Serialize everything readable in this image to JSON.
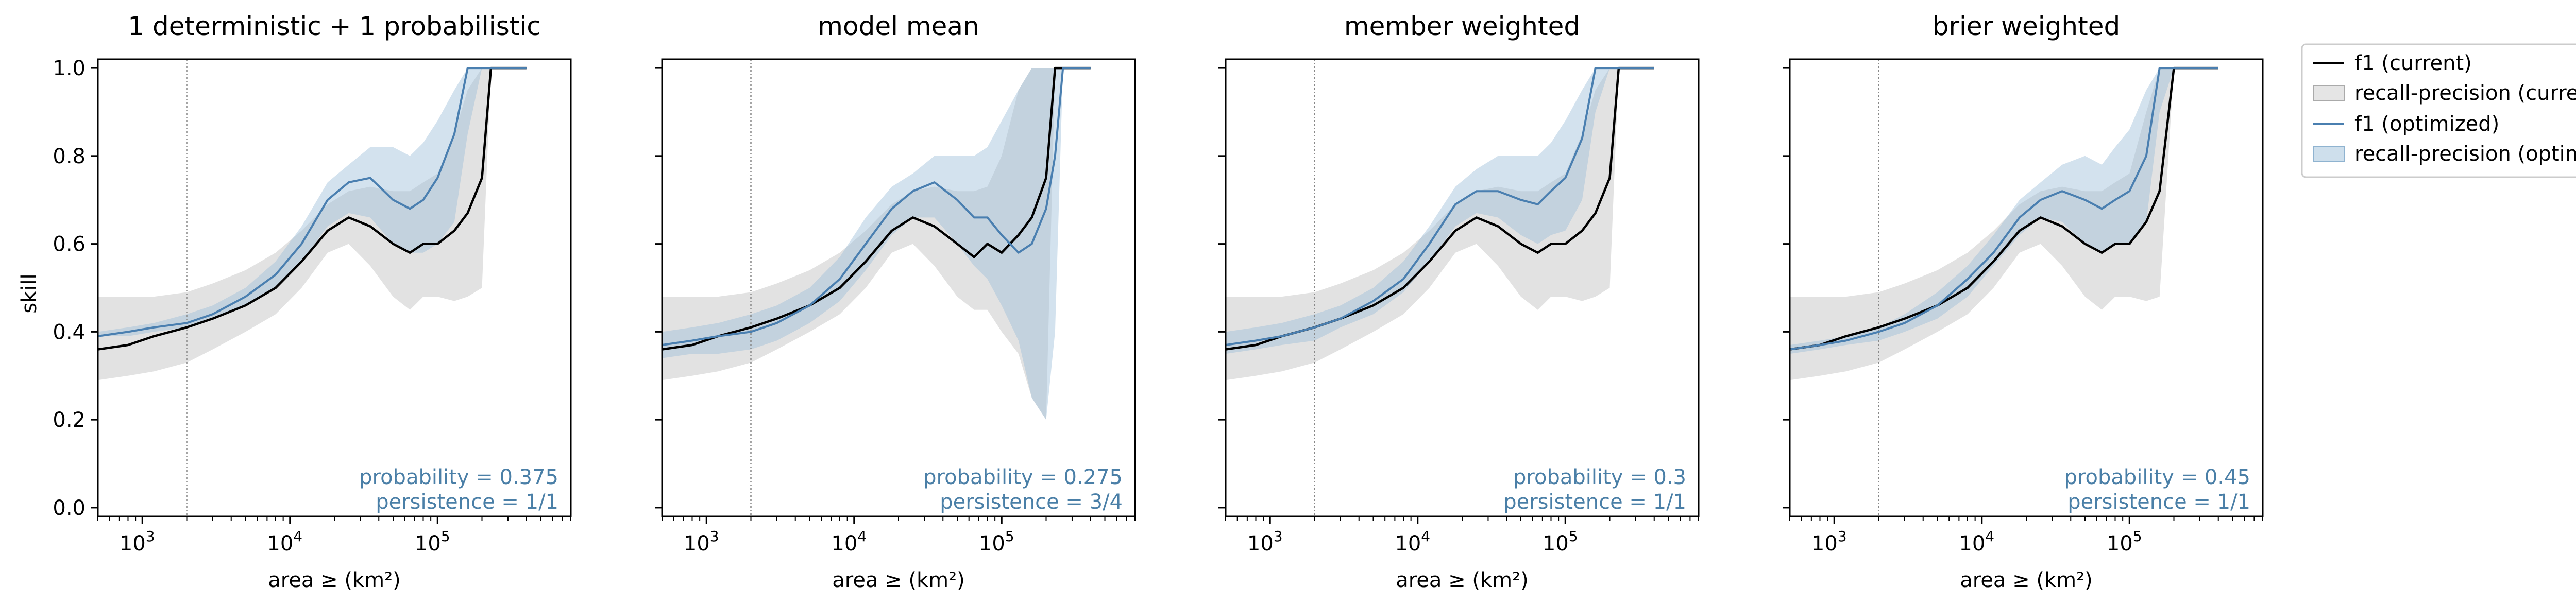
{
  "figure": {
    "ylabel": "skill",
    "xlabel": "area ≥ (km²)",
    "legend": {
      "f1_current": "f1 (current)",
      "rp_current": "recall-precision (current)",
      "f1_optimized": "f1 (optimized)",
      "rp_optimized": "recall-precision (optimized)"
    },
    "yticks": [
      "0.0",
      "0.2",
      "0.4",
      "0.6",
      "0.8",
      "1.0"
    ],
    "xticks": [
      {
        "base": "10",
        "exp": "3"
      },
      {
        "base": "10",
        "exp": "4"
      },
      {
        "base": "10",
        "exp": "5"
      }
    ]
  },
  "colors": {
    "current_line": "#000000",
    "current_band": "#d3d3d3",
    "optimized_line": "#4a7fb0",
    "optimized_band": "#9dbfd9",
    "annotation": "#4a7fa7",
    "vline": "#888888"
  },
  "chart_data": [
    {
      "type": "line",
      "title": "1 deterministic + 1 probabilistic",
      "xscale": "log",
      "xlim": [
        500,
        800000
      ],
      "ylim": [
        -0.02,
        1.02
      ],
      "vline_x": 2000,
      "annotation": {
        "probability": "probability = 0.375",
        "persistence": "persistence = 1/1"
      },
      "x": [
        500,
        800,
        1200,
        2000,
        3000,
        5000,
        8000,
        12000,
        18000,
        25000,
        35000,
        50000,
        65000,
        80000,
        100000,
        130000,
        160000,
        200000,
        230000,
        260000,
        300000,
        400000
      ],
      "series": [
        {
          "name": "f1 (current)",
          "y": [
            0.36,
            0.37,
            0.39,
            0.41,
            0.43,
            0.46,
            0.5,
            0.56,
            0.63,
            0.66,
            0.64,
            0.6,
            0.58,
            0.6,
            0.6,
            0.63,
            0.67,
            0.75,
            1.0,
            1.0,
            1.0,
            1.0
          ],
          "band_lower": [
            0.29,
            0.3,
            0.31,
            0.33,
            0.36,
            0.4,
            0.44,
            0.5,
            0.58,
            0.6,
            0.55,
            0.48,
            0.45,
            0.48,
            0.48,
            0.47,
            0.48,
            0.5,
            1.0,
            1.0,
            1.0,
            1.0
          ],
          "band_upper": [
            0.48,
            0.48,
            0.48,
            0.49,
            0.51,
            0.54,
            0.58,
            0.63,
            0.69,
            0.72,
            0.73,
            0.72,
            0.72,
            0.74,
            0.76,
            0.85,
            0.95,
            1.0,
            1.0,
            1.0,
            1.0,
            1.0
          ]
        },
        {
          "name": "f1 (optimized)",
          "y": [
            0.39,
            0.4,
            0.41,
            0.42,
            0.44,
            0.48,
            0.53,
            0.6,
            0.7,
            0.74,
            0.75,
            0.7,
            0.68,
            0.7,
            0.75,
            0.85,
            1.0,
            1.0,
            1.0,
            1.0,
            1.0,
            1.0
          ],
          "band_lower": [
            0.39,
            0.39,
            0.4,
            0.41,
            0.43,
            0.46,
            0.5,
            0.56,
            0.64,
            0.67,
            0.66,
            0.6,
            0.58,
            0.58,
            0.6,
            0.65,
            0.85,
            1.0,
            1.0,
            1.0,
            1.0,
            1.0
          ],
          "band_upper": [
            0.4,
            0.41,
            0.42,
            0.44,
            0.46,
            0.5,
            0.56,
            0.64,
            0.74,
            0.78,
            0.82,
            0.82,
            0.8,
            0.83,
            0.88,
            0.95,
            1.0,
            1.0,
            1.0,
            1.0,
            1.0,
            1.0
          ]
        }
      ]
    },
    {
      "type": "line",
      "title": "model mean",
      "xscale": "log",
      "xlim": [
        500,
        800000
      ],
      "ylim": [
        -0.02,
        1.02
      ],
      "vline_x": 2000,
      "annotation": {
        "probability": "probability = 0.275",
        "persistence": "persistence = 3/4"
      },
      "x": [
        500,
        800,
        1200,
        2000,
        3000,
        5000,
        8000,
        12000,
        18000,
        25000,
        35000,
        50000,
        65000,
        80000,
        100000,
        130000,
        160000,
        200000,
        230000,
        260000,
        300000,
        400000
      ],
      "series": [
        {
          "name": "f1 (current)",
          "y": [
            0.36,
            0.37,
            0.39,
            0.41,
            0.43,
            0.46,
            0.5,
            0.56,
            0.63,
            0.66,
            0.64,
            0.6,
            0.57,
            0.6,
            0.58,
            0.62,
            0.66,
            0.75,
            1.0,
            1.0,
            1.0,
            1.0
          ],
          "band_lower": [
            0.29,
            0.3,
            0.31,
            0.33,
            0.36,
            0.4,
            0.44,
            0.5,
            0.58,
            0.6,
            0.55,
            0.48,
            0.45,
            0.45,
            0.4,
            0.35,
            0.25,
            0.2,
            1.0,
            1.0,
            1.0,
            1.0
          ],
          "band_upper": [
            0.48,
            0.48,
            0.48,
            0.49,
            0.51,
            0.54,
            0.58,
            0.63,
            0.69,
            0.72,
            0.73,
            0.72,
            0.72,
            0.73,
            0.8,
            0.95,
            1.0,
            1.0,
            1.0,
            1.0,
            1.0,
            1.0
          ]
        },
        {
          "name": "f1 (optimized)",
          "y": [
            0.37,
            0.38,
            0.39,
            0.4,
            0.42,
            0.46,
            0.52,
            0.6,
            0.68,
            0.72,
            0.74,
            0.7,
            0.66,
            0.66,
            0.62,
            0.58,
            0.6,
            0.68,
            0.8,
            1.0,
            1.0,
            1.0
          ],
          "band_lower": [
            0.34,
            0.35,
            0.35,
            0.36,
            0.38,
            0.42,
            0.47,
            0.54,
            0.62,
            0.66,
            0.66,
            0.6,
            0.55,
            0.52,
            0.46,
            0.38,
            0.25,
            0.2,
            0.4,
            1.0,
            1.0,
            1.0
          ],
          "band_upper": [
            0.4,
            0.41,
            0.42,
            0.44,
            0.46,
            0.5,
            0.57,
            0.66,
            0.73,
            0.76,
            0.8,
            0.8,
            0.8,
            0.82,
            0.88,
            0.95,
            1.0,
            1.0,
            1.0,
            1.0,
            1.0,
            1.0
          ]
        }
      ]
    },
    {
      "type": "line",
      "title": "member weighted",
      "xscale": "log",
      "xlim": [
        500,
        800000
      ],
      "ylim": [
        -0.02,
        1.02
      ],
      "vline_x": 2000,
      "annotation": {
        "probability": "probability = 0.3",
        "persistence": "persistence = 1/1"
      },
      "x": [
        500,
        800,
        1200,
        2000,
        3000,
        5000,
        8000,
        12000,
        18000,
        25000,
        35000,
        50000,
        65000,
        80000,
        100000,
        130000,
        160000,
        200000,
        230000,
        260000,
        300000,
        400000
      ],
      "series": [
        {
          "name": "f1 (current)",
          "y": [
            0.36,
            0.37,
            0.39,
            0.41,
            0.43,
            0.46,
            0.5,
            0.56,
            0.63,
            0.66,
            0.64,
            0.6,
            0.58,
            0.6,
            0.6,
            0.63,
            0.67,
            0.75,
            1.0,
            1.0,
            1.0,
            1.0
          ],
          "band_lower": [
            0.29,
            0.3,
            0.31,
            0.33,
            0.36,
            0.4,
            0.44,
            0.5,
            0.58,
            0.6,
            0.55,
            0.48,
            0.45,
            0.48,
            0.48,
            0.47,
            0.48,
            0.5,
            1.0,
            1.0,
            1.0,
            1.0
          ],
          "band_upper": [
            0.48,
            0.48,
            0.48,
            0.49,
            0.51,
            0.54,
            0.58,
            0.63,
            0.69,
            0.72,
            0.73,
            0.72,
            0.72,
            0.74,
            0.76,
            0.85,
            0.95,
            1.0,
            1.0,
            1.0,
            1.0,
            1.0
          ]
        },
        {
          "name": "f1 (optimized)",
          "y": [
            0.37,
            0.38,
            0.39,
            0.41,
            0.43,
            0.47,
            0.52,
            0.6,
            0.69,
            0.72,
            0.72,
            0.7,
            0.69,
            0.72,
            0.75,
            0.84,
            1.0,
            1.0,
            1.0,
            1.0,
            1.0,
            1.0
          ],
          "band_lower": [
            0.35,
            0.36,
            0.37,
            0.38,
            0.41,
            0.44,
            0.49,
            0.56,
            0.64,
            0.67,
            0.66,
            0.62,
            0.6,
            0.62,
            0.63,
            0.7,
            0.9,
            1.0,
            1.0,
            1.0,
            1.0,
            1.0
          ],
          "band_upper": [
            0.4,
            0.41,
            0.42,
            0.44,
            0.46,
            0.5,
            0.56,
            0.64,
            0.73,
            0.77,
            0.8,
            0.8,
            0.8,
            0.83,
            0.88,
            0.95,
            1.0,
            1.0,
            1.0,
            1.0,
            1.0,
            1.0
          ]
        }
      ]
    },
    {
      "type": "line",
      "title": "brier weighted",
      "xscale": "log",
      "xlim": [
        500,
        800000
      ],
      "ylim": [
        -0.02,
        1.02
      ],
      "vline_x": 2000,
      "annotation": {
        "probability": "probability = 0.45",
        "persistence": "persistence = 1/1"
      },
      "x": [
        500,
        800,
        1200,
        2000,
        3000,
        5000,
        8000,
        12000,
        18000,
        25000,
        35000,
        50000,
        65000,
        80000,
        100000,
        130000,
        160000,
        200000,
        230000,
        260000,
        300000,
        400000
      ],
      "series": [
        {
          "name": "f1 (current)",
          "y": [
            0.36,
            0.37,
            0.39,
            0.41,
            0.43,
            0.46,
            0.5,
            0.56,
            0.63,
            0.66,
            0.64,
            0.6,
            0.58,
            0.6,
            0.6,
            0.65,
            0.72,
            1.0,
            1.0,
            1.0,
            1.0,
            1.0
          ],
          "band_lower": [
            0.29,
            0.3,
            0.31,
            0.33,
            0.36,
            0.4,
            0.44,
            0.5,
            0.58,
            0.6,
            0.55,
            0.48,
            0.45,
            0.48,
            0.48,
            0.47,
            0.48,
            1.0,
            1.0,
            1.0,
            1.0,
            1.0
          ],
          "band_upper": [
            0.48,
            0.48,
            0.48,
            0.49,
            0.51,
            0.54,
            0.58,
            0.63,
            0.69,
            0.72,
            0.73,
            0.72,
            0.72,
            0.74,
            0.76,
            0.9,
            1.0,
            1.0,
            1.0,
            1.0,
            1.0,
            1.0
          ]
        },
        {
          "name": "f1 (optimized)",
          "y": [
            0.36,
            0.37,
            0.38,
            0.4,
            0.42,
            0.46,
            0.52,
            0.58,
            0.66,
            0.7,
            0.72,
            0.7,
            0.68,
            0.7,
            0.72,
            0.8,
            1.0,
            1.0,
            1.0,
            1.0,
            1.0,
            1.0
          ],
          "band_lower": [
            0.35,
            0.36,
            0.37,
            0.38,
            0.4,
            0.43,
            0.48,
            0.55,
            0.62,
            0.66,
            0.65,
            0.6,
            0.58,
            0.6,
            0.6,
            0.65,
            0.9,
            1.0,
            1.0,
            1.0,
            1.0,
            1.0
          ],
          "band_upper": [
            0.37,
            0.38,
            0.39,
            0.41,
            0.44,
            0.49,
            0.55,
            0.62,
            0.7,
            0.74,
            0.78,
            0.8,
            0.78,
            0.82,
            0.86,
            0.95,
            1.0,
            1.0,
            1.0,
            1.0,
            1.0,
            1.0
          ]
        }
      ]
    }
  ]
}
